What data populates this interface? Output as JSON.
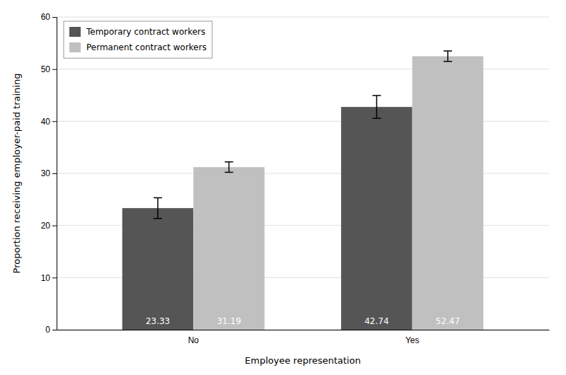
{
  "chart_data": {
    "type": "bar",
    "categories": [
      "No",
      "Yes"
    ],
    "xlabel": "Employee representation",
    "ylabel": "Proportion receiving employer-paid training",
    "series": [
      {
        "name": "Temporary contract workers",
        "color": "#555555",
        "values": [
          23.33,
          42.74
        ],
        "errors": [
          2.0,
          2.2
        ]
      },
      {
        "name": "Permanent contract workers",
        "color": "#c0c0c0",
        "values": [
          31.19,
          52.47
        ],
        "errors": [
          1.0,
          1.0
        ]
      }
    ],
    "ylim": [
      0,
      60
    ],
    "yticks": [
      0,
      10,
      20,
      30,
      40,
      50,
      60
    ],
    "grid": true,
    "legend": "upper left",
    "data_labels": true
  }
}
